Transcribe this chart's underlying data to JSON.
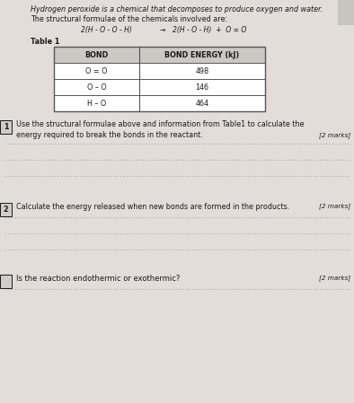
{
  "bg_color": "#b8b4b0",
  "paper_color": "#e2ddd8",
  "title_text": "Hydrogen peroxide is a chemical that decomposes to produce oxygen and water.",
  "subtitle_text": "The structural formulae of the chemicals involved are:",
  "equation_left": "2(H - O - O - H)",
  "equation_arrow": "→",
  "equation_right": "2(H - O - H)  +  O = O",
  "table_title": "Table 1",
  "table_headers": [
    "BOND",
    "BOND ENERGY (kJ)"
  ],
  "table_rows": [
    [
      "O = O",
      "498"
    ],
    [
      "O – O",
      "146"
    ],
    [
      "H – O",
      "464"
    ]
  ],
  "q1_num": "1",
  "q1_text": "Use the structural formulae above and information from Table1 to calculate the\nenergy required to break the bonds in the reactant.",
  "q1_marks": "[2 marks]",
  "q1_lines": 3,
  "q2_num": "2",
  "q2_text": "Calculate the energy released when new bonds are formed in the products.",
  "q2_marks": "[2 marks]",
  "q2_lines": 3,
  "q3_text": "Is the reaction endothermic or exothermic?",
  "q3_marks": "[2 marks]",
  "q3_lines": 1,
  "font_color": "#1a1a1a",
  "table_border_color": "#555555",
  "line_color": "#999999",
  "num_box_color": "#d0ccc8",
  "header_bg": "#ccc8c4"
}
